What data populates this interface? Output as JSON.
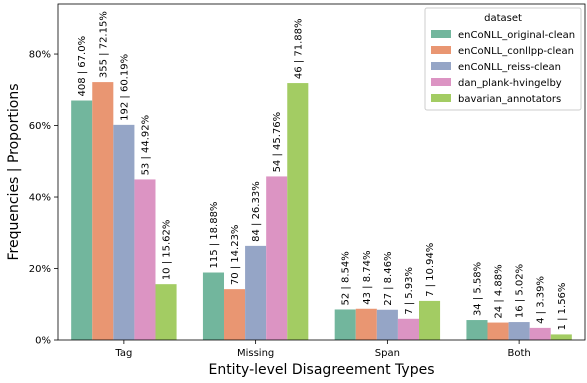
{
  "chart_data": {
    "type": "bar",
    "title": "",
    "xlabel": "Entity-level Disagreement Types",
    "ylabel": "Frequencies | Proportions",
    "categories": [
      "Tag",
      "Missing",
      "Span",
      "Both"
    ],
    "y_ticks": [
      "0%",
      "20%",
      "40%",
      "60%",
      "80%"
    ],
    "ylim": [
      0,
      94
    ],
    "legend": {
      "title": "dataset",
      "position": "top-right"
    },
    "series": [
      {
        "name": "enCoNLL_original-clean",
        "color": "#72b69d",
        "values": [
          67.0,
          18.88,
          8.54,
          5.58
        ],
        "labels": [
          "408 | 67.0%",
          "115 | 18.88%",
          "52 | 8.54%",
          "34 | 5.58%"
        ]
      },
      {
        "name": "enCoNLL_conllpp-clean",
        "color": "#e99672",
        "values": [
          72.15,
          14.23,
          8.74,
          4.88
        ],
        "labels": [
          "355 | 72.15%",
          "70 | 14.23%",
          "43 | 8.74%",
          "24 | 4.88%"
        ]
      },
      {
        "name": "enCoNLL_reiss-clean",
        "color": "#95a5c6",
        "values": [
          60.19,
          26.33,
          8.46,
          5.02
        ],
        "labels": [
          "192 | 60.19%",
          "84 | 26.33%",
          "27 | 8.46%",
          "16 | 5.02%"
        ]
      },
      {
        "name": "dan_plank-hvingelby",
        "color": "#dc94c3",
        "values": [
          44.92,
          45.76,
          5.93,
          3.39
        ],
        "labels": [
          "53 | 44.92%",
          "54 | 45.76%",
          "7 | 5.93%",
          "4 | 3.39%"
        ]
      },
      {
        "name": "bavarian_annotators",
        "color": "#a3cc63",
        "values": [
          15.62,
          71.88,
          10.94,
          1.56
        ],
        "labels": [
          "10 | 15.62%",
          "46 | 71.88%",
          "7 | 10.94%",
          "1 | 1.56%"
        ]
      }
    ]
  }
}
